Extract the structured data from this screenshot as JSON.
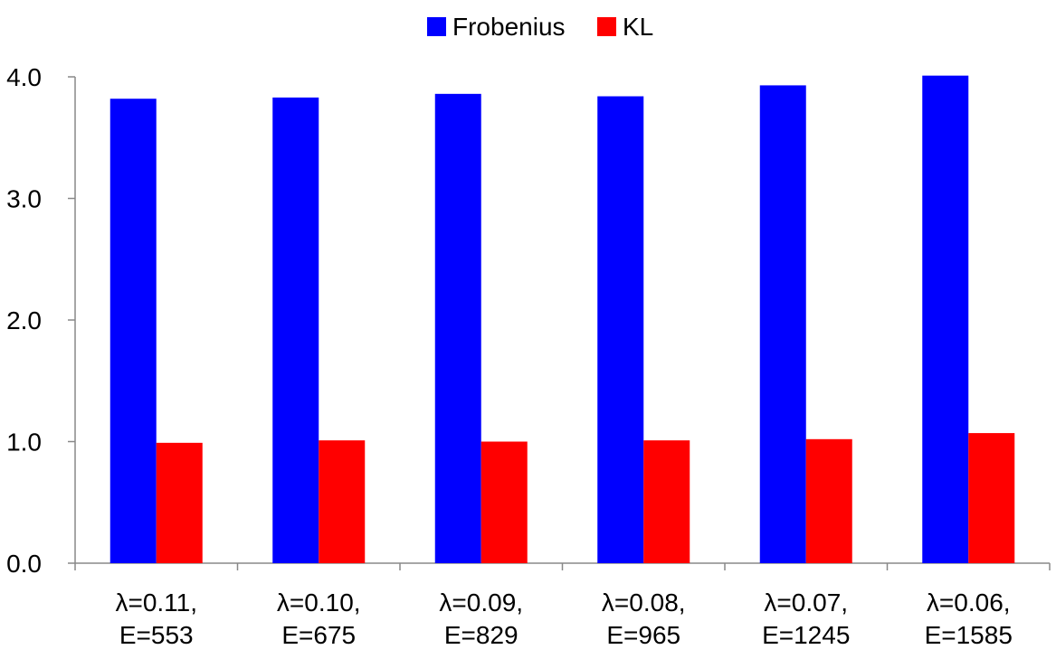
{
  "chart_data": {
    "type": "bar",
    "title": "",
    "xlabel": "",
    "ylabel": "",
    "ylim": [
      0,
      4
    ],
    "yticks": [
      "0.0",
      "1.0",
      "2.0",
      "3.0",
      "4.0"
    ],
    "grid": false,
    "legend_position": "top-center",
    "categories": [
      [
        "λ=0.11,",
        "E=553"
      ],
      [
        "λ=0.10,",
        "E=675"
      ],
      [
        "λ=0.09,",
        "E=829"
      ],
      [
        "λ=0.08,",
        "E=965"
      ],
      [
        "λ=0.07,",
        "E=1245"
      ],
      [
        "λ=0.06,",
        "E=1585"
      ]
    ],
    "series": [
      {
        "name": "Frobenius",
        "color": "#0000ff",
        "values": [
          3.82,
          3.83,
          3.86,
          3.84,
          3.93,
          4.01
        ]
      },
      {
        "name": "KL",
        "color": "#ff0000",
        "values": [
          0.99,
          1.01,
          1.0,
          1.01,
          1.02,
          1.07
        ]
      }
    ]
  }
}
